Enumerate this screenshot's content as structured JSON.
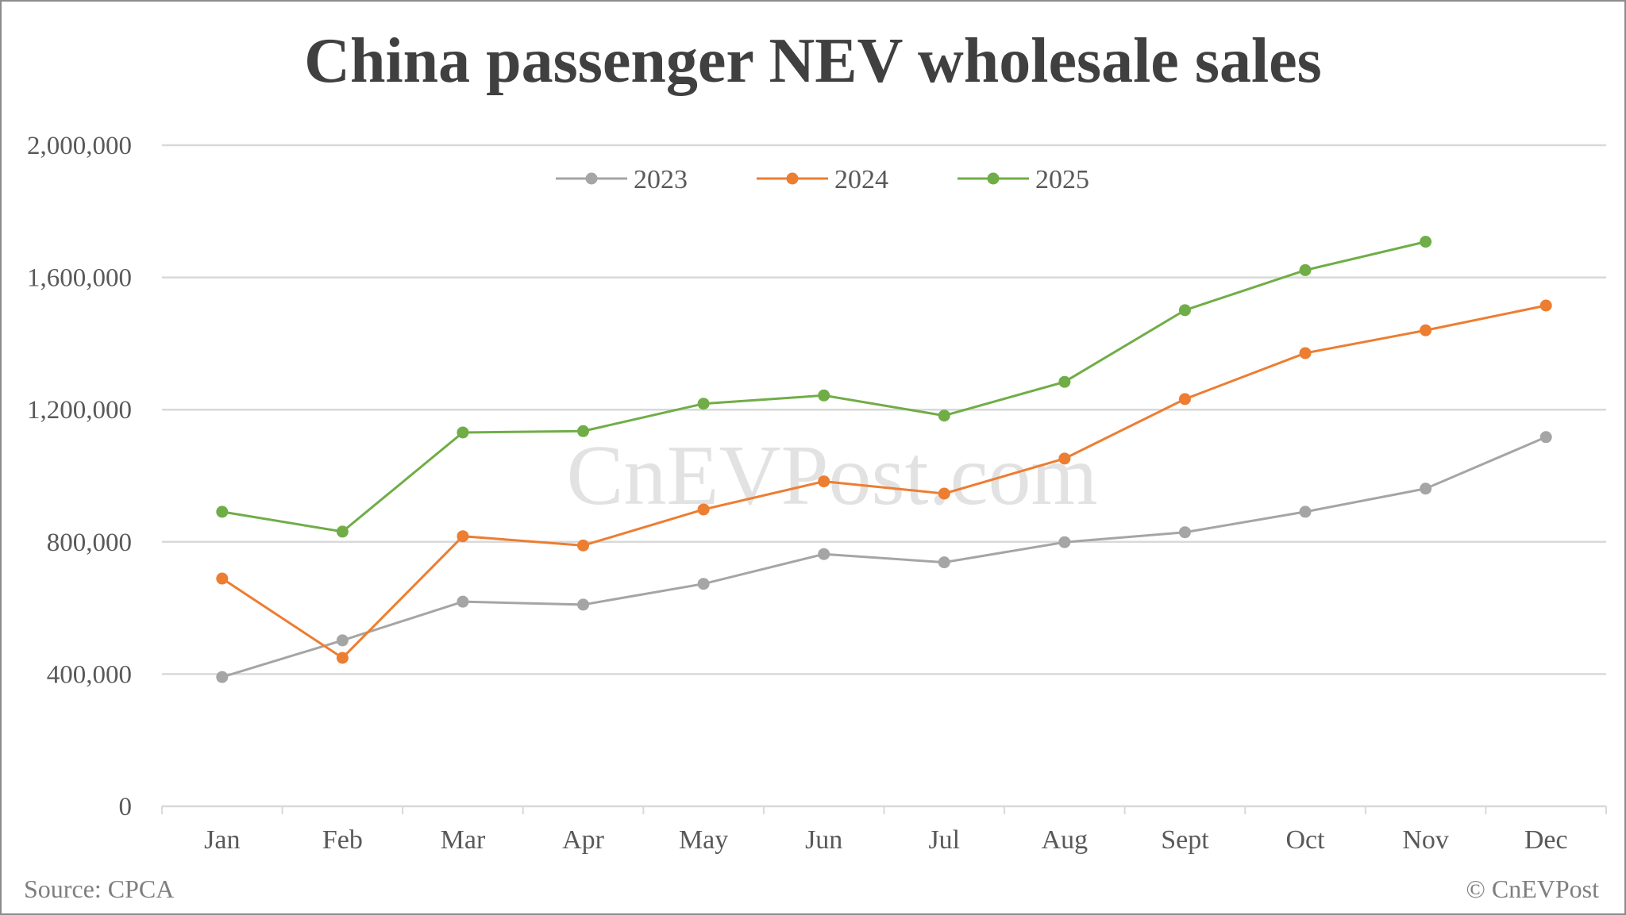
{
  "chart_data": {
    "type": "line",
    "title": "China passenger NEV wholesale sales",
    "xlabel": "",
    "ylabel": "",
    "categories": [
      "Jan",
      "Feb",
      "Mar",
      "Apr",
      "May",
      "Jun",
      "Jul",
      "Aug",
      "Sept",
      "Oct",
      "Nov",
      "Dec"
    ],
    "ylim": [
      0,
      2000000
    ],
    "yticks": [
      0,
      400000,
      800000,
      1200000,
      1600000,
      2000000
    ],
    "ytick_labels": [
      "0",
      "400,000",
      "800,000",
      "1,200,000",
      "1,600,000",
      "2,000,000"
    ],
    "grid": true,
    "legend_position": "top",
    "series": [
      {
        "name": "2023",
        "color": "#A5A5A5",
        "values": [
          391000,
          502000,
          619000,
          610000,
          673000,
          763000,
          738000,
          799000,
          829000,
          891000,
          961000,
          1117000
        ]
      },
      {
        "name": "2024",
        "color": "#ED7D31",
        "values": [
          689000,
          449000,
          817000,
          789000,
          898000,
          983000,
          946000,
          1052000,
          1232000,
          1371000,
          1440000,
          1515000
        ]
      },
      {
        "name": "2025",
        "color": "#70AD47",
        "values": [
          891000,
          831000,
          1131000,
          1135000,
          1218000,
          1243000,
          1182000,
          1284000,
          1501000,
          1622000,
          1708000,
          null
        ]
      }
    ],
    "annotations": [
      "CnEVPost.com"
    ]
  },
  "header": {
    "title": "China passenger NEV wholesale sales"
  },
  "footer": {
    "source": "Source: CPCA",
    "copyright": "© CnEVPost"
  },
  "watermark": "CnEVPost.com",
  "legend": [
    {
      "label": "2023",
      "color": "#A5A5A5"
    },
    {
      "label": "2024",
      "color": "#ED7D31"
    },
    {
      "label": "2025",
      "color": "#70AD47"
    }
  ]
}
